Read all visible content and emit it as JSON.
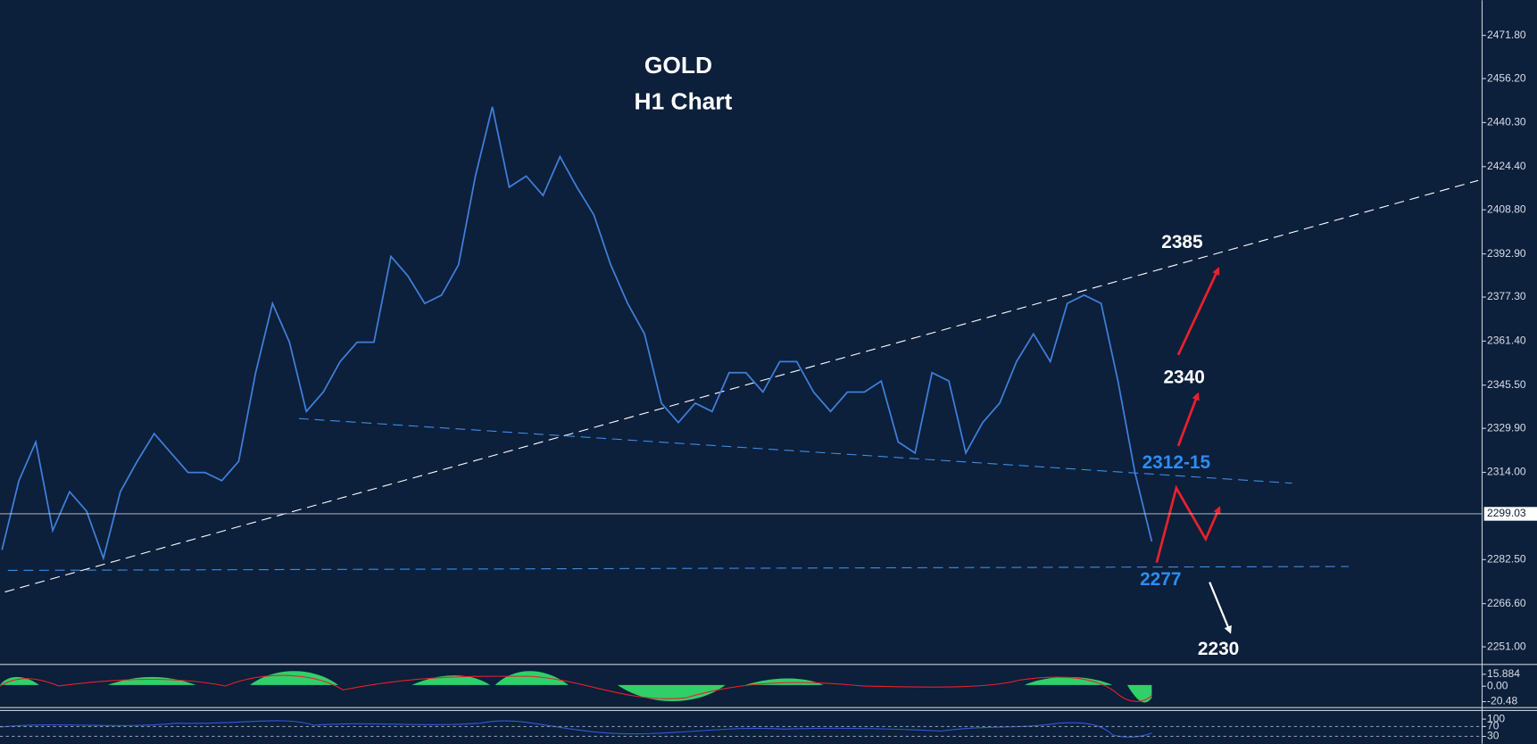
{
  "chart_data": [
    {
      "type": "line",
      "title": "GOLD",
      "subtitle": "H1 Chart",
      "categories": [
        null,
        null,
        null,
        null,
        null,
        null,
        null,
        null,
        null,
        null,
        null,
        null,
        null,
        null,
        null,
        null,
        null,
        null,
        null,
        null,
        null,
        null,
        null,
        null,
        null,
        null,
        null,
        null,
        null,
        null,
        null,
        null,
        null,
        null,
        null,
        null,
        null,
        null,
        null,
        null,
        null,
        null,
        null,
        null,
        null,
        null,
        null,
        null,
        null,
        null,
        null,
        null,
        null,
        null,
        null,
        null,
        null,
        null,
        null,
        null,
        null,
        null,
        null,
        null,
        null,
        null,
        null,
        null,
        null
      ],
      "series": [
        {
          "name": "GOLD",
          "color": "#3f7fd8",
          "values": [
            2286,
            2311,
            2325,
            2293,
            2307,
            2300,
            2283,
            2307,
            2318,
            2328,
            2321,
            2314,
            2314,
            2311,
            2318,
            2350,
            2375,
            2361,
            2336,
            2343,
            2354,
            2361,
            2361,
            2392,
            2385,
            2375,
            2378,
            2389,
            2421,
            2446,
            2417,
            2421,
            2414,
            2428,
            2417,
            2407,
            2389,
            2375,
            2364,
            2339,
            2332,
            2339,
            2336,
            2350,
            2350,
            2343,
            2354,
            2354,
            2343,
            2336,
            2343,
            2343,
            2347,
            2325,
            2321,
            2350,
            2347,
            2321,
            2332,
            2339,
            2354,
            2364,
            2354,
            2375,
            2378,
            2375,
            2347,
            2314,
            2289
          ]
        }
      ],
      "current_price": {
        "value": 2299.03,
        "label": "2299.03"
      },
      "ylim": [
        2245,
        2484.5
      ],
      "yticks": [
        {
          "value": 2471.8,
          "label": "2471.80"
        },
        {
          "value": 2456.2,
          "label": "2456.20"
        },
        {
          "value": 2440.3,
          "label": "2440.30"
        },
        {
          "value": 2424.4,
          "label": "2424.40"
        },
        {
          "value": 2408.8,
          "label": "2408.80"
        },
        {
          "value": 2392.9,
          "label": "2392.90"
        },
        {
          "value": 2377.3,
          "label": "2377.30"
        },
        {
          "value": 2361.4,
          "label": "2361.40"
        },
        {
          "value": 2345.5,
          "label": "2345.50"
        },
        {
          "value": 2329.9,
          "label": "2329.90"
        },
        {
          "value": 2314,
          "label": "2314.00"
        },
        {
          "value": 2282.5,
          "label": "2282.50"
        },
        {
          "value": 2266.6,
          "label": "2266.60"
        },
        {
          "value": 2251,
          "label": "2251.00"
        }
      ],
      "annotations": [
        "2385",
        "2340",
        "2312-15",
        "2277",
        "2230"
      ]
    },
    {
      "type": "macd",
      "ylim": [
        -27,
        26.3
      ],
      "yticks": [
        15.884,
        {
          "value": 0,
          "label": "0.00"
        },
        -20.48
      ]
    },
    {
      "type": "rsi",
      "ylim": [
        0,
        131
      ],
      "yticks": [
        100,
        70,
        30
      ]
    }
  ]
}
